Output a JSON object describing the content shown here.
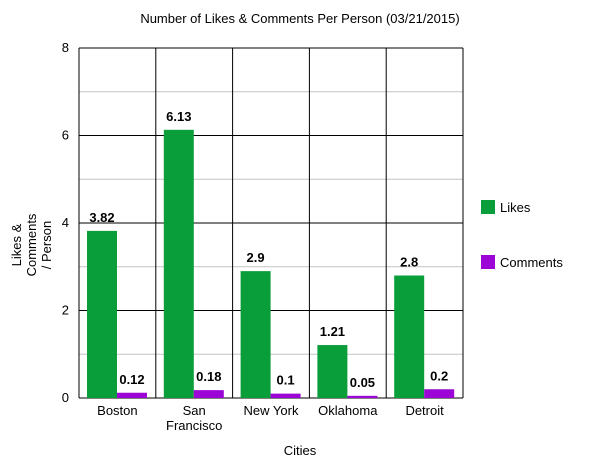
{
  "chart_data": {
    "type": "bar",
    "title": "Number of Likes & Comments Per Person (03/21/2015)",
    "xlabel": "Cities",
    "ylabel": [
      "Likes &",
      "Comments",
      "/ Person"
    ],
    "categories": [
      [
        "Boston"
      ],
      [
        "San",
        "Francisco"
      ],
      [
        "New York"
      ],
      [
        "Oklahoma"
      ],
      [
        "Detroit"
      ]
    ],
    "series": [
      {
        "name": "Likes",
        "color": "#0a9e3a",
        "values": [
          3.82,
          6.13,
          2.9,
          1.21,
          2.8
        ],
        "labels": [
          "3.82",
          "6.13",
          "2.9",
          "1.21",
          "2.8"
        ]
      },
      {
        "name": "Comments",
        "color": "#9b06d6",
        "values": [
          0.12,
          0.18,
          0.1,
          0.05,
          0.2
        ],
        "labels": [
          "0.12",
          "0.18",
          "0.1",
          "0.05",
          "0.2"
        ]
      }
    ],
    "ylim": [
      0,
      8
    ],
    "yticks": [
      0,
      2,
      4,
      6,
      8
    ],
    "minor_gridlines": [
      1,
      3,
      5,
      7
    ],
    "grid": true,
    "legend": "right"
  }
}
